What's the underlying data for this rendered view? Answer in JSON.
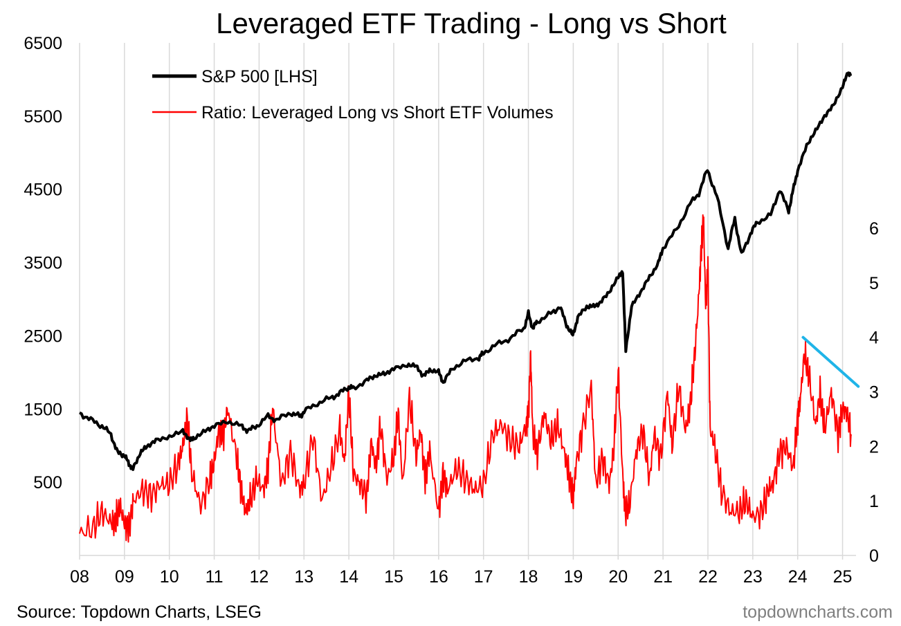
{
  "chart_data": {
    "type": "line",
    "title": "Leveraged ETF Trading - Long vs Short",
    "source": "Source: Topdown Charts, LSEG",
    "brand": "topdowncharts.com",
    "x_tick_labels": [
      "08",
      "09",
      "10",
      "11",
      "12",
      "13",
      "14",
      "15",
      "16",
      "17",
      "18",
      "19",
      "20",
      "21",
      "22",
      "23",
      "24",
      "25"
    ],
    "xlim": [
      2008.0,
      2025.3
    ],
    "left_axis": {
      "ticks": [
        500,
        1500,
        2500,
        3500,
        4500,
        5500,
        6500
      ],
      "ylim": [
        -500,
        6500
      ]
    },
    "right_axis": {
      "ticks": [
        0,
        1,
        2,
        3,
        4,
        5,
        6
      ],
      "ylim": [
        0,
        9.4
      ]
    },
    "grid": "vertical",
    "legend_position": "top-left",
    "colors": {
      "sp500": "#000000",
      "ratio": "#ff0000",
      "trendline": "#1fb4e8"
    },
    "series": [
      {
        "name": "S&P 500 [LHS]",
        "axis": "left",
        "x": [
          2008.0,
          2008.25,
          2008.5,
          2008.7,
          2008.85,
          2009.0,
          2009.1,
          2009.19,
          2009.35,
          2009.5,
          2009.7,
          2010.0,
          2010.3,
          2010.45,
          2010.55,
          2010.8,
          2011.0,
          2011.3,
          2011.6,
          2011.75,
          2011.95,
          2012.2,
          2012.4,
          2012.7,
          2012.9,
          2013.0,
          2013.3,
          2013.6,
          2013.8,
          2014.0,
          2014.1,
          2014.4,
          2014.6,
          2014.8,
          2015.0,
          2015.3,
          2015.5,
          2015.65,
          2015.8,
          2016.0,
          2016.1,
          2016.3,
          2016.6,
          2016.9,
          2017.0,
          2017.3,
          2017.6,
          2017.9,
          2018.0,
          2018.1,
          2018.2,
          2018.5,
          2018.7,
          2018.85,
          2018.99,
          2019.1,
          2019.3,
          2019.45,
          2019.6,
          2019.8,
          2020.0,
          2020.1,
          2020.17,
          2020.3,
          2020.5,
          2020.7,
          2020.9,
          2021.0,
          2021.3,
          2021.6,
          2021.8,
          2021.99,
          2022.2,
          2022.45,
          2022.6,
          2022.75,
          2022.95,
          2023.1,
          2023.4,
          2023.6,
          2023.8,
          2023.9,
          2024.0,
          2024.2,
          2024.4,
          2024.6,
          2024.8,
          2025.0,
          2025.12,
          2025.18
        ],
        "values": [
          1450,
          1350,
          1270,
          1150,
          900,
          870,
          750,
          680,
          900,
          990,
          1070,
          1120,
          1200,
          1080,
          1100,
          1200,
          1270,
          1330,
          1270,
          1200,
          1270,
          1400,
          1350,
          1450,
          1400,
          1460,
          1580,
          1650,
          1720,
          1800,
          1780,
          1890,
          1960,
          1980,
          2050,
          2100,
          2090,
          1950,
          2030,
          2010,
          1860,
          2050,
          2160,
          2200,
          2270,
          2380,
          2470,
          2600,
          2800,
          2600,
          2700,
          2800,
          2900,
          2650,
          2500,
          2750,
          2900,
          2900,
          2950,
          3100,
          3300,
          3380,
          2300,
          2900,
          3100,
          3300,
          3500,
          3700,
          3950,
          4300,
          4450,
          4770,
          4400,
          3700,
          4100,
          3600,
          3900,
          4050,
          4150,
          4500,
          4200,
          4500,
          4750,
          5100,
          5300,
          5500,
          5650,
          5900,
          6100,
          6050
        ]
      },
      {
        "name": "Ratio: Leveraged Long vs Short ETF Volumes",
        "axis": "right",
        "x": [
          2008.0,
          2008.3,
          2008.5,
          2008.7,
          2008.8,
          2008.9,
          2009.0,
          2009.1,
          2009.2,
          2009.4,
          2009.6,
          2009.8,
          2010.0,
          2010.2,
          2010.3,
          2010.4,
          2010.5,
          2010.7,
          2010.9,
          2011.0,
          2011.1,
          2011.2,
          2011.3,
          2011.5,
          2011.6,
          2011.7,
          2011.8,
          2011.95,
          2012.1,
          2012.2,
          2012.3,
          2012.5,
          2012.7,
          2012.9,
          2013.0,
          2013.2,
          2013.4,
          2013.6,
          2013.8,
          2013.9,
          2014.0,
          2014.1,
          2014.25,
          2014.4,
          2014.5,
          2014.6,
          2014.7,
          2014.85,
          2015.0,
          2015.1,
          2015.2,
          2015.35,
          2015.5,
          2015.6,
          2015.7,
          2015.8,
          2016.0,
          2016.1,
          2016.2,
          2016.4,
          2016.6,
          2016.8,
          2017.0,
          2017.2,
          2017.4,
          2017.6,
          2017.8,
          2017.95,
          2018.0,
          2018.05,
          2018.1,
          2018.2,
          2018.35,
          2018.5,
          2018.65,
          2018.8,
          2018.9,
          2019.0,
          2019.05,
          2019.2,
          2019.4,
          2019.5,
          2019.65,
          2019.8,
          2019.9,
          2020.0,
          2020.1,
          2020.15,
          2020.25,
          2020.4,
          2020.55,
          2020.7,
          2020.8,
          2020.95,
          2021.1,
          2021.2,
          2021.35,
          2021.5,
          2021.6,
          2021.7,
          2021.8,
          2021.85,
          2021.9,
          2021.95,
          2022.0,
          2022.05,
          2022.15,
          2022.3,
          2022.5,
          2022.7,
          2022.85,
          2023.0,
          2023.2,
          2023.35,
          2023.45,
          2023.6,
          2023.75,
          2023.9,
          2024.0,
          2024.05,
          2024.15,
          2024.25,
          2024.4,
          2024.5,
          2024.6,
          2024.75,
          2024.9,
          2025.0,
          2025.1,
          2025.2
        ],
        "values": [
          0.4,
          0.5,
          0.8,
          0.6,
          0.6,
          0.9,
          0.6,
          0.5,
          1.0,
          1.2,
          1.1,
          1.3,
          1.3,
          1.7,
          2.0,
          2.5,
          1.5,
          0.9,
          1.4,
          1.7,
          2.3,
          2.2,
          2.7,
          1.8,
          1.2,
          0.8,
          1.0,
          1.4,
          1.2,
          1.6,
          2.7,
          1.3,
          1.9,
          1.2,
          1.3,
          2.2,
          1.0,
          1.6,
          2.3,
          1.7,
          3.0,
          1.5,
          1.3,
          1.1,
          2.1,
          1.6,
          2.4,
          1.4,
          1.8,
          2.6,
          1.3,
          2.9,
          1.8,
          2.3,
          1.4,
          1.9,
          0.8,
          1.5,
          1.2,
          1.6,
          1.4,
          1.2,
          1.3,
          2.2,
          2.4,
          2.1,
          2.0,
          2.4,
          2.6,
          3.7,
          2.2,
          1.9,
          2.6,
          2.1,
          2.4,
          1.9,
          1.5,
          1.0,
          1.6,
          2.3,
          3.1,
          1.3,
          1.8,
          1.3,
          1.9,
          3.4,
          1.5,
          0.8,
          0.9,
          1.9,
          2.3,
          1.4,
          2.2,
          1.8,
          3.0,
          2.0,
          3.1,
          2.3,
          2.7,
          3.6,
          4.8,
          5.6,
          6.2,
          4.6,
          5.3,
          2.3,
          2.0,
          1.2,
          0.8,
          0.8,
          1.0,
          0.7,
          0.8,
          1.2,
          1.3,
          1.9,
          2.0,
          1.6,
          2.5,
          2.8,
          3.7,
          3.3,
          2.4,
          3.0,
          2.3,
          3.0,
          2.2,
          2.7,
          2.6,
          2.2
        ]
      }
    ],
    "trendline": {
      "axis": "right",
      "x": [
        2024.12,
        2025.35
      ],
      "values": [
        4.0,
        3.1
      ]
    }
  }
}
